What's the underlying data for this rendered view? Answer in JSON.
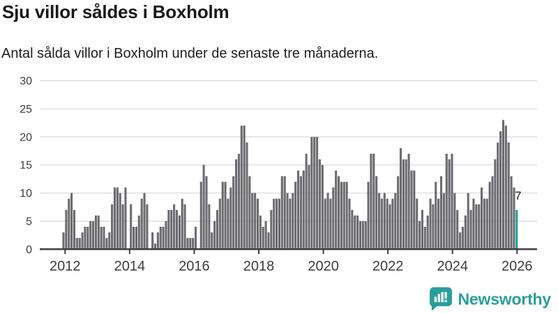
{
  "header": {
    "title": "Sju villor såldes i Boxholm",
    "subtitle": "Antal sålda villor i Boxholm under de senaste tre månaderna."
  },
  "chart_data": {
    "type": "bar",
    "title": "Sju villor såldes i Boxholm",
    "x_axis": {
      "tick_labels": [
        "2012",
        "2014",
        "2016",
        "2018",
        "2020",
        "2022",
        "2024",
        "2026"
      ],
      "period": "monthly"
    },
    "y_axis": {
      "ticks": [
        0,
        5,
        10,
        15,
        20,
        25,
        30
      ],
      "range": [
        0,
        30
      ]
    },
    "series": [
      {
        "name": "Sålda villor",
        "values": [
          3,
          7,
          9,
          10,
          7,
          2,
          2,
          3,
          4,
          4,
          5,
          5,
          6,
          6,
          4,
          4,
          2,
          3,
          8,
          11,
          11,
          10,
          8,
          11,
          0,
          8,
          4,
          4,
          6,
          9,
          10,
          8,
          0,
          3,
          1,
          3,
          4,
          4,
          5,
          7,
          7,
          8,
          7,
          6,
          9,
          8,
          2,
          2,
          2,
          4,
          0,
          12,
          15,
          13,
          8,
          3,
          5,
          7,
          9,
          12,
          12,
          9,
          11,
          13,
          16,
          17,
          22,
          22,
          19,
          13,
          10,
          10,
          9,
          6,
          4,
          5,
          3,
          7,
          9,
          9,
          9,
          13,
          13,
          10,
          9,
          10,
          12,
          14,
          13,
          14,
          17,
          15,
          20,
          20,
          20,
          16,
          15,
          9,
          10,
          9,
          11,
          14,
          13,
          12,
          12,
          12,
          9,
          7,
          6,
          6,
          5,
          5,
          5,
          12,
          17,
          17,
          13,
          10,
          9,
          10,
          9,
          8,
          9,
          10,
          13,
          18,
          16,
          16,
          17,
          14,
          14,
          9,
          5,
          7,
          4,
          6,
          9,
          8,
          12,
          9,
          13,
          10,
          17,
          16,
          17,
          10,
          7,
          3,
          4,
          6,
          10,
          7,
          9,
          8,
          8,
          11,
          9,
          9,
          12,
          13,
          16,
          19,
          21,
          23,
          22,
          19,
          13,
          11,
          7
        ]
      }
    ],
    "highlight": {
      "index": 168,
      "value": 7,
      "label": "7",
      "color": "#149f9f"
    },
    "bar_color": "#6b6b70",
    "grid_color": "#e6e6e6",
    "axis_color": "#3f3f3f",
    "label_color": "#3d3d3d",
    "grid": true,
    "legend": "none"
  },
  "branding": {
    "logo_text": "Newsworthy",
    "logo_color": "#2a9e99"
  }
}
